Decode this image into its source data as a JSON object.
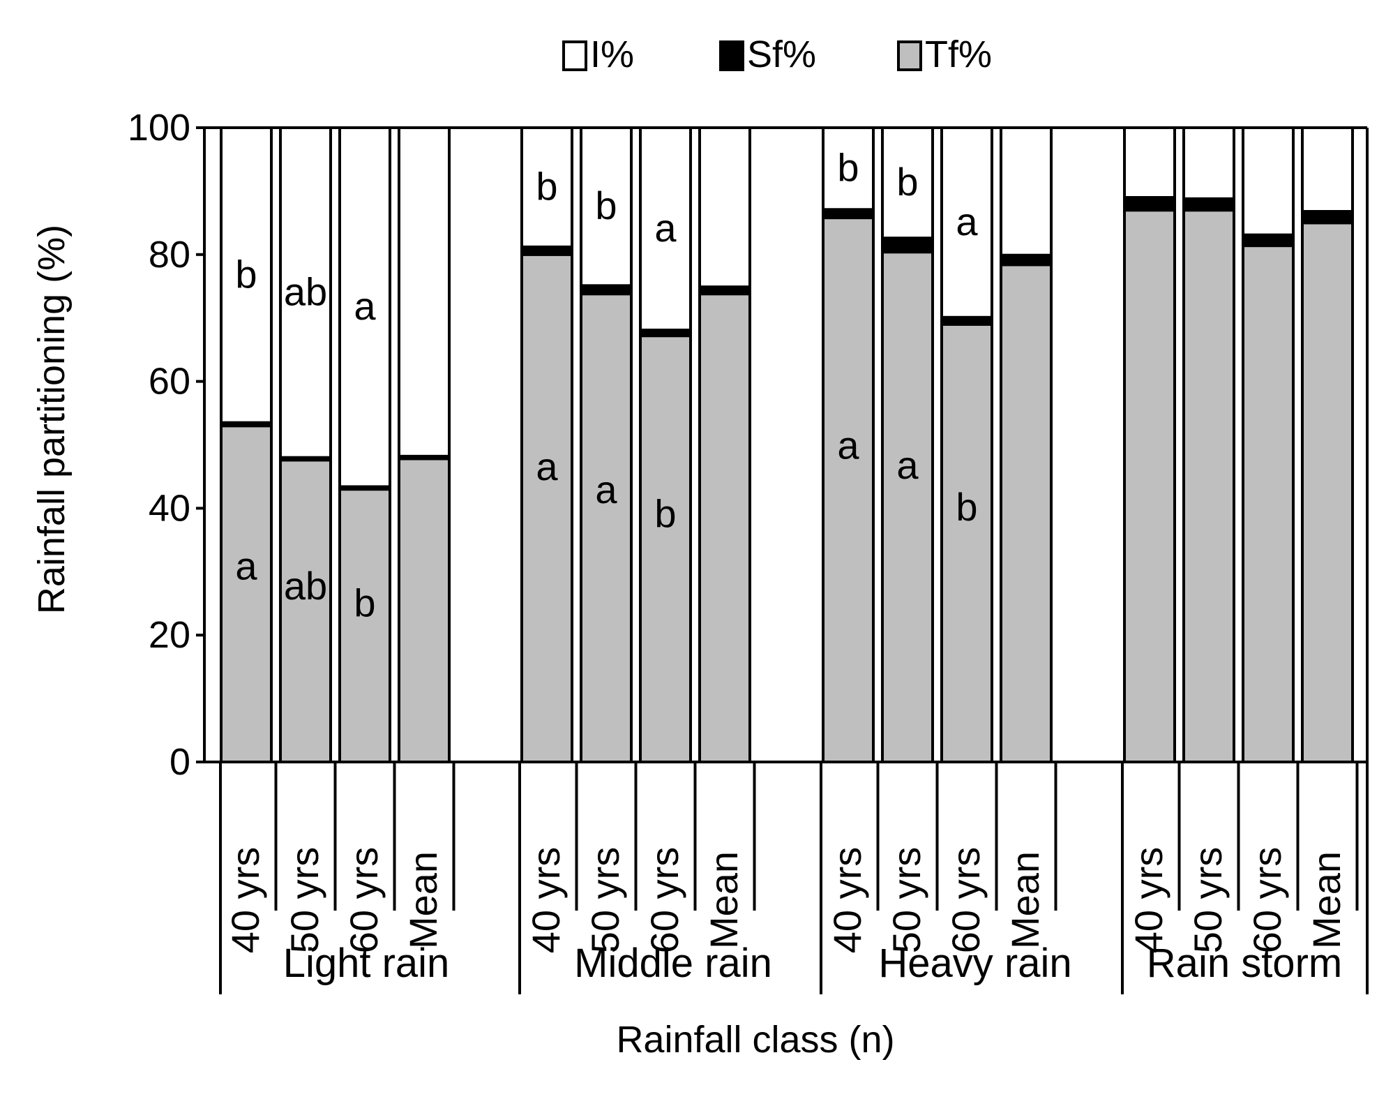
{
  "chart_data": {
    "type": "bar",
    "stacked": true,
    "title": "",
    "ylabel": "Rainfall partitioning (%)",
    "xlabel": "Rainfall class (n)",
    "ylim": [
      0,
      100
    ],
    "yticks": [
      0,
      20,
      40,
      60,
      80,
      100
    ],
    "legend": {
      "placement": "top-center",
      "entries": [
        {
          "name": "I%",
          "color": "#ffffff"
        },
        {
          "name": "Sf%",
          "color": "#000000"
        },
        {
          "name": "Tf%",
          "color": "#bfbfbf"
        }
      ]
    },
    "groups": [
      "Light rain",
      "Middle rain",
      "Heavy rain",
      "Rain storm"
    ],
    "categories": [
      "40 yrs",
      "50 yrs",
      "60 yrs",
      "Mean"
    ],
    "series": [
      {
        "name": "Tf%",
        "color": "#bfbfbf",
        "values": [
          [
            53,
            47.6,
            43,
            47.8
          ],
          [
            80,
            73.8,
            67.2,
            73.8
          ],
          [
            85.8,
            80.4,
            69,
            78.4
          ],
          [
            87,
            87,
            81.4,
            85
          ]
        ]
      },
      {
        "name": "Sf%",
        "color": "#000000",
        "values": [
          [
            0.5,
            0.4,
            0.4,
            0.4
          ],
          [
            1.2,
            1.3,
            0.9,
            1.1
          ],
          [
            1.3,
            2.2,
            1.1,
            1.5
          ],
          [
            2.0,
            1.8,
            1.7,
            1.8
          ]
        ]
      },
      {
        "name": "I%",
        "color": "#ffffff",
        "values": [
          [
            46.5,
            52,
            56.6,
            51.8
          ],
          [
            18.8,
            24.9,
            31.9,
            25.1
          ],
          [
            12.9,
            17.4,
            29.9,
            20.1
          ],
          [
            11,
            11.2,
            16.9,
            13.2
          ]
        ]
      }
    ],
    "annotations": {
      "top": [
        [
          "b",
          "ab",
          "a",
          ""
        ],
        [
          "b",
          "b",
          "a",
          ""
        ],
        [
          "b",
          "b",
          "a",
          ""
        ],
        [
          "",
          "",
          "",
          ""
        ]
      ],
      "bottom": [
        [
          "a",
          "ab",
          "b",
          ""
        ],
        [
          "a",
          "a",
          "b",
          ""
        ],
        [
          "a",
          "a",
          "b",
          ""
        ],
        [
          "",
          "",
          "",
          ""
        ]
      ]
    }
  }
}
